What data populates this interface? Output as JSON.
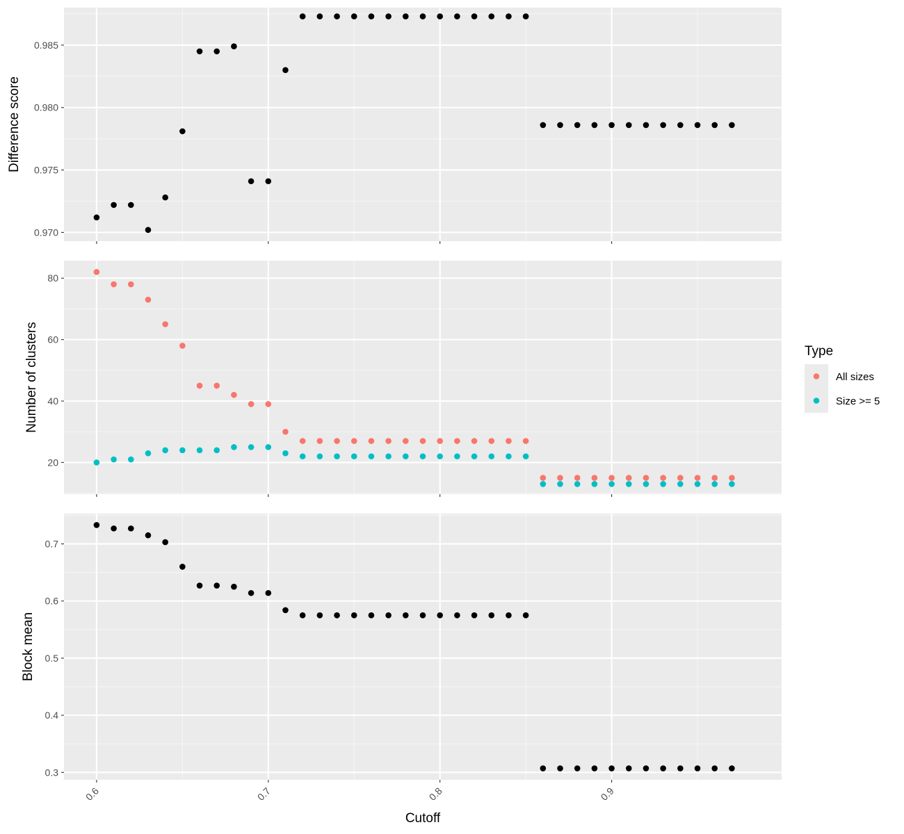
{
  "colors": {
    "panel_bg": "#ebebeb",
    "grid_major": "#ffffff",
    "grid_minor": "#f5f5f5",
    "tick": "#333333",
    "point_default": "#000000",
    "all_sizes": "#f8766d",
    "size_ge_5": "#00bfc4",
    "legend_key_bg": "#ebebeb"
  },
  "chart_data": {
    "type": "scatter",
    "facets": "vertical panels sharing x axis",
    "xlabel": "Cutoff",
    "x": [
      0.6,
      0.61,
      0.62,
      0.63,
      0.64,
      0.65,
      0.66,
      0.67,
      0.68,
      0.69,
      0.7,
      0.71,
      0.72,
      0.73,
      0.74,
      0.75,
      0.76,
      0.77,
      0.78,
      0.79,
      0.8,
      0.81,
      0.82,
      0.83,
      0.84,
      0.85,
      0.86,
      0.87,
      0.88,
      0.89,
      0.9,
      0.91,
      0.92,
      0.93,
      0.94,
      0.95,
      0.96,
      0.97
    ],
    "xlim": [
      0.581,
      0.999
    ],
    "xticks": [
      0.6,
      0.7,
      0.8,
      0.9
    ],
    "xtick_labels": [
      "0.6",
      "0.7",
      "0.8",
      "0.9"
    ],
    "grid": true,
    "panels": [
      {
        "ylabel": "Difference score",
        "ylim": [
          0.9693,
          0.988
        ],
        "yticks": [
          0.97,
          0.975,
          0.98,
          0.985
        ],
        "ytick_labels": [
          "0.970",
          "0.975",
          "0.980",
          "0.985"
        ],
        "series": [
          {
            "color": "#000000",
            "values": [
              0.9712,
              0.9722,
              0.9722,
              0.9702,
              0.9728,
              0.9781,
              0.9845,
              0.9845,
              0.9849,
              0.9741,
              0.9741,
              0.983,
              0.9873,
              0.9873,
              0.9873,
              0.9873,
              0.9873,
              0.9873,
              0.9873,
              0.9873,
              0.9873,
              0.9873,
              0.9873,
              0.9873,
              0.9873,
              0.9873,
              0.9786,
              0.9786,
              0.9786,
              0.9786,
              0.9786,
              0.9786,
              0.9786,
              0.9786,
              0.9786,
              0.9786,
              0.9786,
              0.9786
            ]
          }
        ]
      },
      {
        "ylabel": "Number of clusters",
        "ylim": [
          9.7,
          85.7
        ],
        "yticks": [
          20,
          40,
          60,
          80
        ],
        "ytick_labels": [
          "20",
          "40",
          "60",
          "80"
        ],
        "series": [
          {
            "name": "All sizes",
            "color": "#f8766d",
            "values": [
              82,
              78,
              78,
              73,
              65,
              58,
              45,
              45,
              42,
              39,
              39,
              30,
              27,
              27,
              27,
              27,
              27,
              27,
              27,
              27,
              27,
              27,
              27,
              27,
              27,
              27,
              15,
              15,
              15,
              15,
              15,
              15,
              15,
              15,
              15,
              15,
              15,
              15
            ]
          },
          {
            "name": "Size >= 5",
            "color": "#00bfc4",
            "values": [
              20,
              21,
              21,
              23,
              24,
              24,
              24,
              24,
              25,
              25,
              25,
              23,
              22,
              22,
              22,
              22,
              22,
              22,
              22,
              22,
              22,
              22,
              22,
              22,
              22,
              22,
              13,
              13,
              13,
              13,
              13,
              13,
              13,
              13,
              13,
              13,
              13,
              13
            ]
          }
        ]
      },
      {
        "ylabel": "Block mean",
        "ylim": [
          0.287,
          0.753
        ],
        "yticks": [
          0.3,
          0.4,
          0.5,
          0.6,
          0.7
        ],
        "ytick_labels": [
          "0.3",
          "0.4",
          "0.5",
          "0.6",
          "0.7"
        ],
        "series": [
          {
            "color": "#000000",
            "values": [
              0.733,
              0.727,
              0.727,
              0.715,
              0.703,
              0.66,
              0.627,
              0.627,
              0.625,
              0.614,
              0.614,
              0.584,
              0.575,
              0.575,
              0.575,
              0.575,
              0.575,
              0.575,
              0.575,
              0.575,
              0.575,
              0.575,
              0.575,
              0.575,
              0.575,
              0.575,
              0.307,
              0.307,
              0.307,
              0.307,
              0.307,
              0.307,
              0.307,
              0.307,
              0.307,
              0.307,
              0.307,
              0.307
            ]
          }
        ]
      }
    ],
    "legend": {
      "title": "Type",
      "position": "right",
      "entries": [
        {
          "label": "All sizes",
          "color": "#f8766d"
        },
        {
          "label": "Size >= 5",
          "color": "#00bfc4"
        }
      ]
    }
  }
}
